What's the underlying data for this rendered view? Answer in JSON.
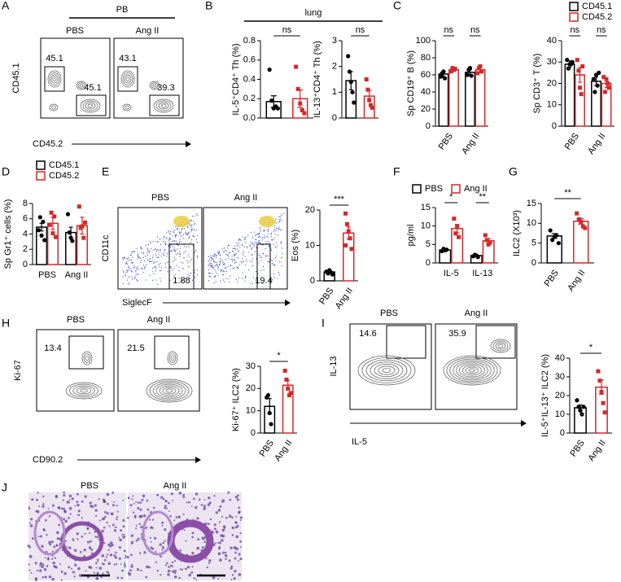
{
  "chart_data": [
    {
      "type": "bar",
      "ylabel": "IL-5⁺CD4⁺ Th (%)",
      "categories": [
        null,
        null
      ],
      "values": [
        0.17,
        0.2
      ],
      "errors": [
        0.06,
        0.09
      ],
      "colors": [
        "#000000",
        "#d62728"
      ],
      "points": [
        [
          0.5,
          0.18,
          0.1,
          0.12,
          0.1
        ],
        [
          0.53,
          0.3,
          0.15,
          0.08,
          0.05
        ]
      ],
      "ylim": [
        0,
        0.8
      ],
      "yticks": [
        {
          "value": 0,
          "label": "0.0"
        },
        0.2,
        0.4,
        0.6,
        0.8
      ],
      "significance": "ns"
    },
    {
      "type": "bar",
      "ylabel": "IL-13⁺CD4⁺ Th (%)",
      "categories": [
        null,
        null
      ],
      "values": [
        1.45,
        0.85
      ],
      "errors": [
        0.35,
        0.22
      ],
      "colors": [
        "#000000",
        "#d62728"
      ],
      "points": [
        [
          2.4,
          1.8,
          1.4,
          1.0,
          0.6
        ],
        [
          1.5,
          1.1,
          0.7,
          0.5,
          0.4
        ]
      ],
      "ylim": [
        0,
        3
      ],
      "yticks": [
        0,
        1,
        2,
        3
      ],
      "significance": "ns"
    },
    {
      "type": "grouped-bar",
      "ylabel": "Sp CD19⁺ B (%)",
      "categories": [
        "PBS",
        "Ang II"
      ],
      "series": [
        {
          "name": "CD45.1",
          "color": "#000000",
          "values": [
            61,
            63
          ],
          "errors": [
            3,
            3
          ],
          "points": [
            [
              58,
              62,
              64,
              56
            ],
            [
              60,
              66,
              68,
              59
            ]
          ]
        },
        {
          "name": "CD45.2",
          "color": "#d62728",
          "values": [
            66,
            66
          ],
          "errors": [
            2,
            3
          ],
          "points": [
            [
              64,
              68,
              66,
              67
            ],
            [
              62,
              68,
              70,
              64
            ]
          ]
        }
      ],
      "ylim": [
        0,
        100
      ],
      "yticks": [
        0,
        20,
        40,
        60,
        80,
        100
      ],
      "significance": [
        "ns",
        "ns"
      ]
    },
    {
      "type": "grouped-bar",
      "ylabel": "Sp CD3⁺ T (%)",
      "categories": [
        "PBS",
        "Ang II"
      ],
      "series": [
        {
          "name": "CD45.1",
          "color": "#000000",
          "values": [
            29,
            21
          ],
          "errors": [
            1.5,
            2
          ],
          "points": [
            [
              31,
              27,
              29,
              29,
              30
            ],
            [
              22,
              16,
              24,
              19,
              25
            ]
          ]
        },
        {
          "name": "CD45.2",
          "color": "#d62728",
          "values": [
            24,
            20
          ],
          "errors": [
            3.5,
            2
          ],
          "points": [
            [
              31,
              26,
              18,
              15,
              28
            ],
            [
              23,
              16,
              22,
              20,
              18
            ]
          ]
        }
      ],
      "ylim": [
        0,
        40
      ],
      "yticks": [
        0,
        10,
        20,
        30,
        40
      ],
      "significance": [
        "ns",
        "ns"
      ],
      "legend": "top"
    },
    {
      "type": "grouped-bar",
      "ylabel": "Sp Gr1⁺ cells (%)",
      "categories": [
        "PBS",
        "Ang II"
      ],
      "series": [
        {
          "name": "CD45.1",
          "color": "#000000",
          "values": [
            4.9,
            4.2
          ],
          "errors": [
            0.5,
            0.7
          ],
          "points": [
            [
              4.5,
              6.2,
              3.8,
              5.6,
              3.2
            ],
            [
              6.6,
              4.2,
              3.5,
              3.1
            ]
          ]
        },
        {
          "name": "CD45.2",
          "color": "#d62728",
          "values": [
            5.4,
            5.1
          ],
          "errors": [
            0.8,
            1.1
          ],
          "points": [
            [
              5.2,
              6.8,
              4.1,
              6.3,
              3.6
            ],
            [
              7.6,
              4.8,
              5.0,
              3.5,
              5.5
            ]
          ]
        }
      ],
      "ylim": [
        0,
        8
      ],
      "yticks": [
        0,
        2,
        4,
        6,
        8
      ],
      "legend": "top"
    },
    {
      "type": "bar",
      "ylabel": "Eos (%)",
      "categories": [
        "PBS",
        "Ang II"
      ],
      "values": [
        2.5,
        13.5
      ],
      "errors": [
        0.4,
        1.7
      ],
      "colors": [
        "#000000",
        "#d62728"
      ],
      "points": [
        [
          2.6,
          2.1,
          3.0,
          2.4,
          1.8
        ],
        [
          19,
          16,
          14,
          12,
          9,
          10
        ]
      ],
      "ylim": [
        0,
        20
      ],
      "yticks": [
        0,
        10,
        20
      ],
      "significance": "***"
    },
    {
      "type": "grouped-bar",
      "ylabel": "pg/ml",
      "categories": [
        "IL-5",
        "IL-13"
      ],
      "series": [
        {
          "name": "PBS",
          "color": "#000000",
          "values": [
            3.5,
            2
          ],
          "errors": [
            0.3,
            0.2
          ],
          "points": [
            [
              3.2,
              3.8,
              3.4,
              3.6
            ],
            [
              1.8,
              2.2,
              2.0,
              1.6
            ]
          ]
        },
        {
          "name": "Ang II",
          "color": "#d62728",
          "values": [
            9.3,
            6
          ],
          "errors": [
            1.1,
            0.6
          ],
          "points": [
            [
              12,
              8,
              10,
              7
            ],
            [
              7.5,
              6.2,
              5.0,
              5.5
            ]
          ]
        }
      ],
      "ylim": [
        0,
        15
      ],
      "yticks": [
        0,
        5,
        10,
        15
      ],
      "significance": [
        "*",
        "**"
      ],
      "legend": "top"
    },
    {
      "type": "bar",
      "ylabel": "ILC2 (X10³)",
      "categories": [
        "PBS",
        "Ang II"
      ],
      "values": [
        6.8,
        10.5
      ],
      "errors": [
        0.6,
        0.7
      ],
      "colors": [
        "#000000",
        "#d62728"
      ],
      "points": [
        [
          8.2,
          5.8,
          6.6,
          7.0,
          5.0
        ],
        [
          12.5,
          11,
          10.4,
          9.2,
          8.8
        ]
      ],
      "ylim": [
        0,
        15
      ],
      "yticks": [
        0,
        5,
        10,
        15
      ],
      "significance": "**"
    },
    {
      "type": "bar",
      "ylabel": "Ki-67⁺ ILC2 (%)",
      "categories": [
        "PBS",
        "Ang II"
      ],
      "values": [
        12,
        21.5
      ],
      "errors": [
        3.5,
        2.2
      ],
      "colors": [
        "#000000",
        "#d62728"
      ],
      "points": [
        [
          16,
          17,
          9,
          4
        ],
        [
          28,
          24,
          20,
          17,
          18
        ]
      ],
      "ylim": [
        0,
        30
      ],
      "yticks": [
        0,
        10,
        20,
        30
      ],
      "significance": "*"
    },
    {
      "type": "bar",
      "ylabel": "IL-5⁺IL-13⁺ ILC2 (%)",
      "categories": [
        "PBS",
        "Ang II"
      ],
      "values": [
        13.5,
        24.5
      ],
      "errors": [
        1.5,
        3.8
      ],
      "colors": [
        "#000000",
        "#d62728"
      ],
      "points": [
        [
          17.5,
          14,
          12,
          10,
          14
        ],
        [
          33,
          28,
          22,
          16,
          11
        ]
      ],
      "ylim": [
        0,
        40
      ],
      "yticks": [
        0,
        10,
        20,
        30,
        40
      ],
      "significance": "*"
    }
  ],
  "panels": {
    "letters": [
      "A",
      "B",
      "C",
      "D",
      "E",
      "F",
      "G",
      "H",
      "I",
      "J"
    ],
    "panel_a": {
      "group": "PB",
      "conditions": [
        "PBS",
        "Ang II"
      ],
      "gates": [
        [
          45.1,
          45.1
        ],
        [
          43.1,
          39.3
        ]
      ],
      "x_axis": "CD45.2",
      "y_axis": "CD45.1"
    },
    "panel_b": {
      "group": "lung"
    },
    "panel_e": {
      "conditions": [
        "PBS",
        "Ang II"
      ],
      "gates": [
        1.88,
        19.4
      ],
      "x_axis": "SiglecF",
      "y_axis": "CD11c"
    },
    "panel_h": {
      "conditions": [
        "PBS",
        "Ang II"
      ],
      "gates": [
        13.4,
        21.5
      ],
      "x_axis": "CD90.2",
      "y_axis": "Ki-67"
    },
    "panel_i": {
      "conditions": [
        "PBS",
        "Ang II"
      ],
      "gates": [
        14.6,
        35.9
      ],
      "x_axis": "IL-5",
      "y_axis": "IL-13"
    },
    "panel_j": {
      "conditions": [
        "PBS",
        "Ang II"
      ]
    }
  }
}
